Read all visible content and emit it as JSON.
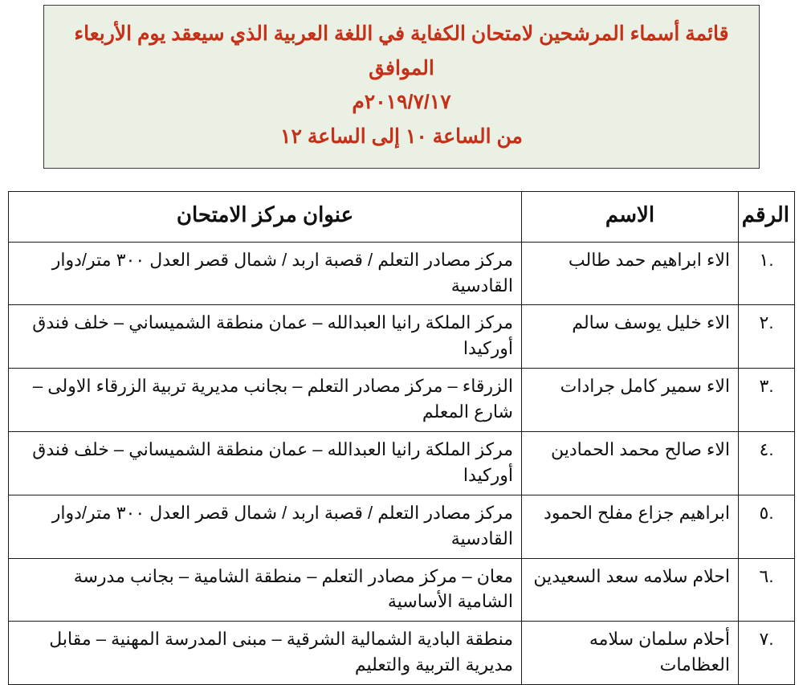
{
  "header": {
    "line1": "قائمة أسماء المرشحين لامتحان الكفاية في اللغة العربية الذي سيعقد يوم الأربعاء الموافق",
    "line2": "٢٠١٩/٧/١٧م",
    "line3": "من الساعة ١٠ إلى الساعة ١٢",
    "bg_color": "#eaf0e4",
    "text_color": "#c43018",
    "border_color": "#3a3a3a",
    "font_size": 25,
    "font_weight": "bold"
  },
  "table": {
    "columns": {
      "num": "الرقم",
      "name": "الاسم",
      "addr": "عنوان مركز الامتحان"
    },
    "col_widths": {
      "num": 70,
      "name": 270
    },
    "header_fontsize": 26,
    "cell_fontsize": 22,
    "border_color": "#1a1a1a",
    "rows": [
      {
        "num": ".١",
        "name": "الاء ابراهيم حمد طالب",
        "addr": "مركز مصادر التعلم / قصبة  اربد /  شمال قصر العدل ٣٠٠ متر/دوار القادسية"
      },
      {
        "num": ".٢",
        "name": "الاء خليل يوسف سالم",
        "addr": "مركز الملكة رانيا العبدالله – عمان منطقة الشميساني – خلف فندق أوركيدا"
      },
      {
        "num": ".٣",
        "name": "الاء سمير كامل جرادات",
        "addr": "الزرقاء – مركز مصادر التعلم – بجانب مديرية تربية الزرقاء الاولى – شارع المعلم"
      },
      {
        "num": ".٤",
        "name": "الاء صالح محمد الحمادين",
        "addr": "مركز الملكة رانيا العبدالله – عمان منطقة الشميساني – خلف فندق أوركيدا"
      },
      {
        "num": ".٥",
        "name": "ابراهيم جزاع مفلح الحمود",
        "addr": "مركز مصادر التعلم / قصبة  اربد /  شمال قصر العدل ٣٠٠ متر/دوار القادسية"
      },
      {
        "num": ".٦",
        "name": "احلام سلامه سعد السعيدين",
        "addr": "معان – مركز مصادر التعلم – منطقة الشامية – بجانب مدرسة الشامية الأساسية"
      },
      {
        "num": ".٧",
        "name": "أحلام سلمان سلامه العظامات",
        "addr": "منطقة البادية الشمالية الشرقية – مبنى المدرسة المهنية – مقابل مديرية التربية والتعليم"
      }
    ]
  }
}
